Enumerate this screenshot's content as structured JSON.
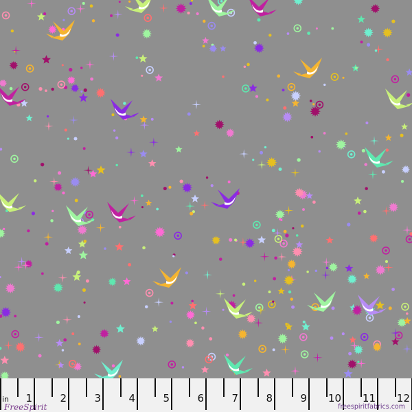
{
  "fabric": {
    "background_color": "#8f8f8f",
    "motifs": [
      "swallow-bird",
      "star",
      "sunburst",
      "sparkle",
      "ring",
      "dot"
    ],
    "palette": [
      "#f5b530",
      "#e6c020",
      "#c8f07a",
      "#9ff5a0",
      "#5fe8b0",
      "#6ff0d0",
      "#b78cf5",
      "#9a8cf0",
      "#c8d0ff",
      "#f07ad0",
      "#ff8fb0",
      "#ff7070",
      "#a0106a",
      "#c020a0",
      "#8a2be2",
      "#ff6ad5"
    ]
  },
  "ruler": {
    "unit": "in",
    "numbers": [
      "1",
      "2",
      "3",
      "4",
      "5",
      "6",
      "7",
      "8",
      "9",
      "10",
      "11",
      "12"
    ],
    "logo_text": "FreeSpirit",
    "url": "freespiritfabrics.com"
  }
}
